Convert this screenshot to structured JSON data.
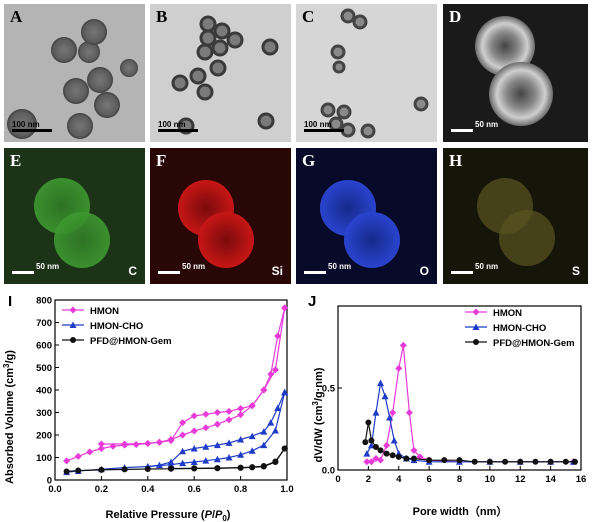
{
  "panels": {
    "A": {
      "label": "A",
      "scale": "100 nm"
    },
    "B": {
      "label": "B",
      "scale": "100 nm"
    },
    "C": {
      "label": "C",
      "scale": "100 nm"
    },
    "D": {
      "label": "D",
      "scale": "50 nm"
    },
    "E": {
      "label": "E",
      "scale": "50 nm",
      "element": "C"
    },
    "F": {
      "label": "F",
      "scale": "50 nm",
      "element": "Si"
    },
    "G": {
      "label": "G",
      "scale": "50 nm",
      "element": "O"
    },
    "H": {
      "label": "H",
      "scale": "50 nm",
      "element": "S"
    }
  },
  "colors": {
    "hmon": "#e83ad8",
    "hmon_cho": "#1f3cc8",
    "pfd": "#111111"
  },
  "chart_data": [
    {
      "panel_label": "I",
      "type": "line",
      "xlabel_prefix": "Relative Pressure (",
      "xlabel_p": "P",
      "xlabel_slash": "/",
      "xlabel_p0": "P",
      "xlabel_sub": "0",
      "xlabel_suffix": ")",
      "ylabel": "Absorbed Volume (cm",
      "ylabel_sup": "3",
      "ylabel_end": "/g)",
      "xlim": [
        0,
        1.0
      ],
      "ylim": [
        0,
        800
      ],
      "xticks": [
        "0.0",
        "0.2",
        "0.4",
        "0.6",
        "0.8",
        "1.0"
      ],
      "yticks": [
        "0",
        "100",
        "200",
        "300",
        "400",
        "500",
        "600",
        "700",
        "800"
      ],
      "legend": [
        "HMON",
        "HMON-CHO",
        "PFD@HMON-Gem"
      ],
      "series": [
        {
          "name": "HMON",
          "adsorption": [
            [
              0.05,
              85
            ],
            [
              0.1,
              105
            ],
            [
              0.15,
              125
            ],
            [
              0.2,
              140
            ],
            [
              0.25,
              150
            ],
            [
              0.3,
              155
            ],
            [
              0.35,
              158
            ],
            [
              0.4,
              162
            ],
            [
              0.45,
              168
            ],
            [
              0.5,
              180
            ],
            [
              0.55,
              200
            ],
            [
              0.6,
              218
            ],
            [
              0.65,
              232
            ],
            [
              0.7,
              248
            ],
            [
              0.75,
              268
            ],
            [
              0.8,
              290
            ],
            [
              0.85,
              330
            ],
            [
              0.9,
              400
            ],
            [
              0.95,
              490
            ],
            [
              0.99,
              765
            ]
          ],
          "desorption": [
            [
              0.99,
              765
            ],
            [
              0.96,
              640
            ],
            [
              0.93,
              470
            ],
            [
              0.9,
              400
            ],
            [
              0.85,
              330
            ],
            [
              0.8,
              318
            ],
            [
              0.75,
              305
            ],
            [
              0.7,
              300
            ],
            [
              0.65,
              292
            ],
            [
              0.6,
              285
            ],
            [
              0.55,
              255
            ],
            [
              0.5,
              175
            ],
            [
              0.45,
              168
            ],
            [
              0.4,
              163
            ],
            [
              0.3,
              160
            ],
            [
              0.2,
              160
            ]
          ]
        },
        {
          "name": "HMON-CHO",
          "adsorption": [
            [
              0.05,
              35
            ],
            [
              0.1,
              40
            ],
            [
              0.2,
              48
            ],
            [
              0.3,
              55
            ],
            [
              0.4,
              60
            ],
            [
              0.5,
              68
            ],
            [
              0.55,
              75
            ],
            [
              0.6,
              80
            ],
            [
              0.65,
              86
            ],
            [
              0.7,
              92
            ],
            [
              0.75,
              100
            ],
            [
              0.8,
              112
            ],
            [
              0.85,
              130
            ],
            [
              0.9,
              155
            ],
            [
              0.95,
              220
            ],
            [
              0.99,
              390
            ]
          ],
          "desorption": [
            [
              0.99,
              390
            ],
            [
              0.96,
              320
            ],
            [
              0.93,
              255
            ],
            [
              0.9,
              215
            ],
            [
              0.85,
              195
            ],
            [
              0.8,
              180
            ],
            [
              0.75,
              165
            ],
            [
              0.7,
              155
            ],
            [
              0.65,
              148
            ],
            [
              0.6,
              140
            ],
            [
              0.55,
              128
            ],
            [
              0.5,
              80
            ],
            [
              0.45,
              66
            ],
            [
              0.4,
              60
            ]
          ]
        },
        {
          "name": "PFD@HMON-Gem",
          "adsorption": [
            [
              0.05,
              38
            ],
            [
              0.1,
              42
            ],
            [
              0.2,
              45
            ],
            [
              0.3,
              47
            ],
            [
              0.4,
              49
            ],
            [
              0.5,
              50
            ],
            [
              0.6,
              51
            ],
            [
              0.7,
              52
            ],
            [
              0.8,
              54
            ],
            [
              0.85,
              56
            ],
            [
              0.9,
              60
            ],
            [
              0.95,
              80
            ],
            [
              0.99,
              140
            ]
          ],
          "desorption": [
            [
              0.99,
              140
            ],
            [
              0.95,
              82
            ],
            [
              0.9,
              62
            ],
            [
              0.85,
              57
            ],
            [
              0.8,
              55
            ],
            [
              0.7,
              53
            ],
            [
              0.6,
              52
            ],
            [
              0.5,
              51
            ]
          ]
        }
      ]
    },
    {
      "panel_label": "J",
      "type": "line",
      "xlabel": "Pore width（nm）",
      "ylabel": "dV/dW (cm",
      "ylabel_sup": "3",
      "ylabel_end": "/g·nm)",
      "xlim": [
        0,
        16
      ],
      "ylim": [
        0,
        1.0
      ],
      "xticks": [
        "0",
        "2",
        "4",
        "6",
        "8",
        "10",
        "12",
        "14",
        "16"
      ],
      "yticks": [
        "0.0",
        "0.5"
      ],
      "legend": [
        "HMON",
        "HMON-CHO",
        "PFD@HMON-Gem"
      ],
      "series": [
        {
          "name": "HMON",
          "points": [
            [
              1.9,
              0.05
            ],
            [
              2.2,
              0.05
            ],
            [
              2.5,
              0.07
            ],
            [
              2.8,
              0.06
            ],
            [
              3.2,
              0.15
            ],
            [
              3.6,
              0.35
            ],
            [
              4.0,
              0.62
            ],
            [
              4.3,
              0.76
            ],
            [
              4.7,
              0.35
            ],
            [
              5.0,
              0.12
            ],
            [
              5.4,
              0.08
            ],
            [
              6,
              0.06
            ],
            [
              8,
              0.05
            ],
            [
              10,
              0.05
            ],
            [
              12,
              0.05
            ],
            [
              14,
              0.05
            ],
            [
              15.5,
              0.05
            ]
          ]
        },
        {
          "name": "HMON-CHO",
          "points": [
            [
              1.9,
              0.1
            ],
            [
              2.2,
              0.15
            ],
            [
              2.5,
              0.35
            ],
            [
              2.8,
              0.53
            ],
            [
              3.1,
              0.45
            ],
            [
              3.4,
              0.32
            ],
            [
              3.7,
              0.18
            ],
            [
              4.0,
              0.1
            ],
            [
              4.5,
              0.07
            ],
            [
              5,
              0.06
            ],
            [
              6,
              0.05
            ],
            [
              8,
              0.05
            ],
            [
              10,
              0.05
            ],
            [
              12,
              0.05
            ],
            [
              14,
              0.05
            ],
            [
              15.5,
              0.05
            ]
          ]
        },
        {
          "name": "PFD@HMON-Gem",
          "points": [
            [
              1.8,
              0.17
            ],
            [
              2.0,
              0.29
            ],
            [
              2.2,
              0.18
            ],
            [
              2.5,
              0.14
            ],
            [
              2.8,
              0.12
            ],
            [
              3.2,
              0.1
            ],
            [
              3.6,
              0.09
            ],
            [
              4.0,
              0.08
            ],
            [
              4.5,
              0.07
            ],
            [
              5,
              0.07
            ],
            [
              6,
              0.06
            ],
            [
              7,
              0.06
            ],
            [
              8,
              0.06
            ],
            [
              9,
              0.05
            ],
            [
              10,
              0.05
            ],
            [
              11,
              0.05
            ],
            [
              12,
              0.05
            ],
            [
              13,
              0.05
            ],
            [
              14,
              0.05
            ],
            [
              15,
              0.05
            ],
            [
              15.6,
              0.05
            ]
          ]
        }
      ]
    }
  ]
}
